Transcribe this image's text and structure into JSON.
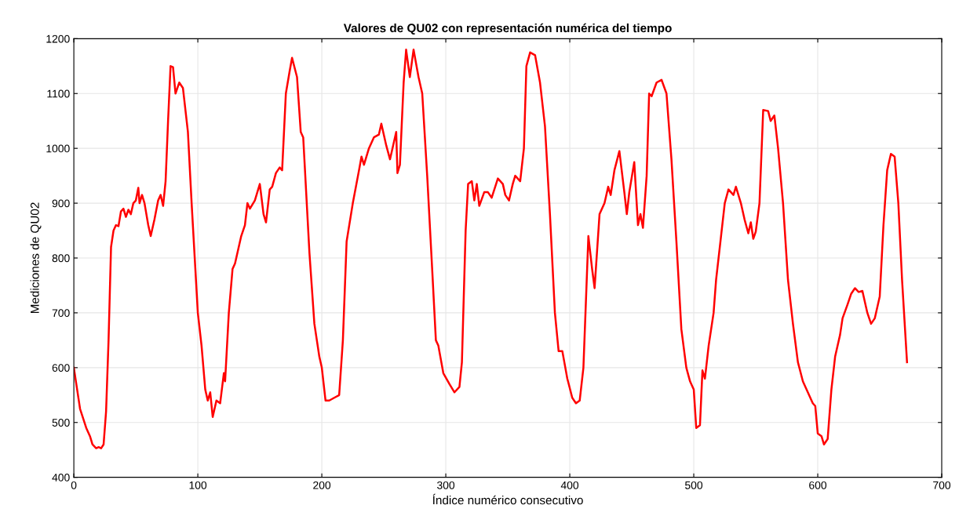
{
  "chart_data": {
    "type": "line",
    "title": "Valores de QU02 con representación numérica del tiempo",
    "xlabel": "Índice numérico consecutivo",
    "ylabel": "Mediciones de QU02",
    "xlim": [
      0,
      700
    ],
    "ylim": [
      400,
      1200
    ],
    "xticks": [
      0,
      100,
      200,
      300,
      400,
      500,
      600,
      700
    ],
    "yticks": [
      400,
      500,
      600,
      700,
      800,
      900,
      1000,
      1100,
      1200
    ],
    "grid": true,
    "legend": false,
    "series": [
      {
        "color": "#ff0000",
        "x": [
          0,
          5,
          10,
          13,
          15,
          18,
          20,
          22,
          24,
          26,
          28,
          30,
          32,
          34,
          36,
          38,
          40,
          42,
          44,
          46,
          48,
          50,
          52,
          53,
          55,
          57,
          60,
          62,
          65,
          68,
          70,
          72,
          74,
          76,
          78,
          80,
          82,
          85,
          88,
          92,
          95,
          100,
          103,
          106,
          108,
          110,
          112,
          115,
          118,
          121,
          122,
          125,
          128,
          130,
          135,
          138,
          140,
          142,
          146,
          150,
          153,
          155,
          158,
          160,
          163,
          166,
          168,
          171,
          174,
          176,
          180,
          183,
          185,
          190,
          194,
          198,
          200,
          203,
          206,
          210,
          214,
          217,
          220,
          225,
          230,
          232,
          234,
          238,
          242,
          246,
          248,
          252,
          255,
          257,
          260,
          261,
          263,
          266,
          268,
          271,
          274,
          278,
          281,
          285,
          289,
          292,
          294,
          298,
          303,
          307,
          311,
          313,
          316,
          318,
          321,
          323,
          325,
          327,
          331,
          334,
          337,
          342,
          346,
          348,
          351,
          354,
          356,
          360,
          363,
          365,
          368,
          372,
          376,
          380,
          384,
          388,
          391,
          394,
          398,
          402,
          405,
          408,
          411,
          415,
          418,
          420,
          424,
          428,
          431,
          433,
          436,
          440,
          444,
          446,
          448,
          452,
          455,
          457,
          459,
          462,
          464,
          466,
          470,
          474,
          478,
          482,
          486,
          490,
          494,
          497,
          500,
          502,
          505,
          507,
          509,
          512,
          516,
          518,
          522,
          525,
          528,
          532,
          534,
          538,
          541,
          544,
          546,
          548,
          550,
          553,
          556,
          560,
          562,
          565,
          568,
          572,
          576,
          580,
          584,
          588,
          592,
          596,
          598,
          600,
          603,
          605,
          608,
          611,
          614,
          618,
          620,
          624,
          627,
          630,
          633,
          636,
          640,
          643,
          646,
          650,
          653,
          656,
          659,
          662,
          665,
          668,
          672
        ],
        "values": [
          600,
          525,
          490,
          475,
          460,
          453,
          455,
          453,
          460,
          520,
          650,
          820,
          850,
          860,
          858,
          885,
          890,
          875,
          888,
          880,
          900,
          905,
          928,
          900,
          915,
          900,
          860,
          840,
          870,
          905,
          915,
          895,
          940,
          1050,
          1150,
          1148,
          1100,
          1120,
          1110,
          1030,
          900,
          700,
          640,
          560,
          540,
          555,
          510,
          540,
          535,
          590,
          575,
          700,
          780,
          790,
          840,
          860,
          900,
          890,
          905,
          935,
          880,
          865,
          925,
          930,
          955,
          965,
          960,
          1100,
          1140,
          1165,
          1130,
          1030,
          1020,
          810,
          680,
          620,
          600,
          540,
          540,
          545,
          550,
          650,
          830,
          900,
          960,
          985,
          970,
          1000,
          1020,
          1025,
          1045,
          1005,
          980,
          1000,
          1030,
          955,
          970,
          1120,
          1180,
          1130,
          1180,
          1130,
          1100,
          950,
          780,
          650,
          640,
          590,
          570,
          555,
          565,
          610,
          850,
          935,
          940,
          905,
          935,
          895,
          920,
          920,
          910,
          945,
          935,
          915,
          905,
          935,
          950,
          940,
          1000,
          1150,
          1175,
          1170,
          1120,
          1040,
          880,
          700,
          630,
          630,
          580,
          545,
          535,
          540,
          600,
          840,
          780,
          745,
          880,
          900,
          930,
          915,
          960,
          995,
          920,
          880,
          920,
          975,
          860,
          880,
          855,
          950,
          1100,
          1095,
          1120,
          1125,
          1100,
          980,
          830,
          670,
          600,
          575,
          560,
          490,
          495,
          595,
          580,
          640,
          700,
          760,
          840,
          900,
          925,
          915,
          930,
          900,
          870,
          845,
          865,
          835,
          848,
          900,
          1070,
          1068,
          1050,
          1060,
          1000,
          900,
          760,
          680,
          610,
          575,
          555,
          535,
          530,
          480,
          475,
          460,
          470,
          560,
          620,
          660,
          690,
          715,
          735,
          745,
          738,
          740,
          700,
          680,
          690,
          730,
          860,
          960,
          990,
          985,
          900,
          760,
          610
        ]
      }
    ]
  }
}
